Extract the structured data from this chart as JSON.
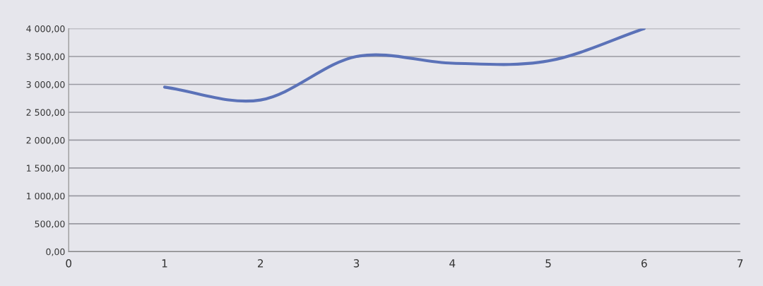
{
  "chart_data": {
    "type": "line",
    "x": [
      1,
      2,
      3,
      4,
      5,
      6
    ],
    "series": [
      {
        "color": "#5b72b8",
        "values": [
          2950,
          2720,
          3500,
          3380,
          3420,
          4000
        ]
      }
    ],
    "xlim": [
      0,
      7
    ],
    "xticks": [
      0,
      1,
      2,
      3,
      4,
      5,
      6,
      7
    ],
    "ylim": [
      0,
      4000
    ],
    "yticks": [
      {
        "value": 0,
        "label": "0,00"
      },
      {
        "value": 500,
        "label": "500,00"
      },
      {
        "value": 1000,
        "label": "1 000,00"
      },
      {
        "value": 1500,
        "label": "1 500,00"
      },
      {
        "value": 2000,
        "label": "2 000,00"
      },
      {
        "value": 2500,
        "label": "2 500,00"
      },
      {
        "value": 3000,
        "label": "3 000,00"
      },
      {
        "value": 3500,
        "label": "3 500,00"
      },
      {
        "value": 4000,
        "label": "4 000,00"
      }
    ],
    "grid": "y",
    "legend": false,
    "marker": "none",
    "line_style": "solid"
  }
}
